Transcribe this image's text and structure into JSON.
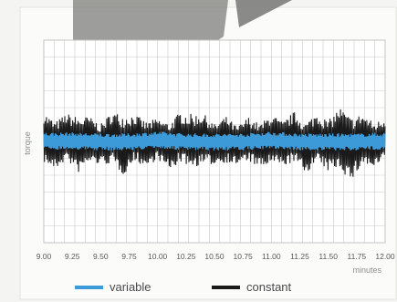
{
  "chart_data": {
    "type": "line",
    "title": "",
    "xlabel": "minutes",
    "ylabel": "torque",
    "xlim": [
      9.0,
      12.0
    ],
    "ylim": [
      -1.0,
      1.0
    ],
    "grid": true,
    "legend_placement": "bottom",
    "x_ticks": [
      "9.00",
      "9.25",
      "9.50",
      "9.75",
      "10.00",
      "10.25",
      "10.50",
      "10.75",
      "11.00",
      "11.25",
      "11.50",
      "11.75",
      "12.00"
    ],
    "series": [
      {
        "name": "constant",
        "color": "#1a1a1a",
        "x": [
          9.0,
          9.1,
          9.2,
          9.3,
          9.4,
          9.5,
          9.6,
          9.7,
          9.8,
          9.9,
          10.0,
          10.1,
          10.2,
          10.3,
          10.4,
          10.5,
          10.6,
          10.7,
          10.8,
          10.9,
          11.0,
          11.1,
          11.2,
          11.3,
          11.4,
          11.5,
          11.6,
          11.7,
          11.8,
          11.9,
          12.0
        ],
        "values": [
          0.22,
          -0.18,
          0.26,
          -0.24,
          0.18,
          -0.2,
          0.24,
          -0.22,
          0.2,
          -0.16,
          0.18,
          -0.24,
          0.22,
          -0.2,
          0.26,
          -0.18,
          0.2,
          -0.22,
          0.16,
          -0.2,
          0.22,
          -0.18,
          0.24,
          -0.26,
          0.2,
          -0.24,
          0.28,
          -0.32,
          0.24,
          -0.22,
          0.2
        ],
        "envelope_upper": [
          0.26,
          0.22,
          0.24,
          0.28,
          0.22,
          0.2,
          0.26,
          0.3,
          0.24,
          0.22,
          0.2,
          0.22,
          0.26,
          0.3,
          0.24,
          0.2,
          0.22,
          0.18,
          0.22,
          0.2,
          0.24,
          0.22,
          0.26,
          0.22,
          0.26,
          0.24,
          0.3,
          0.28,
          0.24,
          0.22,
          0.2
        ],
        "envelope_lower": [
          -0.24,
          -0.26,
          -0.22,
          -0.28,
          -0.24,
          -0.2,
          -0.26,
          -0.3,
          -0.22,
          -0.24,
          -0.2,
          -0.26,
          -0.24,
          -0.22,
          -0.28,
          -0.2,
          -0.24,
          -0.2,
          -0.22,
          -0.24,
          -0.26,
          -0.22,
          -0.24,
          -0.28,
          -0.24,
          -0.26,
          -0.3,
          -0.36,
          -0.26,
          -0.24,
          -0.22
        ]
      },
      {
        "name": "variable",
        "color": "#3d9ad8",
        "x": [
          9.0,
          9.25,
          9.5,
          9.75,
          10.0,
          10.25,
          10.5,
          10.75,
          11.0,
          11.25,
          11.5,
          11.75,
          12.0
        ],
        "values": [
          0.0,
          0.01,
          -0.01,
          0.0,
          0.01,
          0.0,
          -0.01,
          0.0,
          0.01,
          0.0,
          -0.01,
          0.0,
          0.0
        ],
        "envelope_upper": [
          0.09,
          0.08,
          0.09,
          0.08,
          0.09,
          0.08,
          0.09,
          0.08,
          0.09,
          0.08,
          0.09,
          0.08,
          0.09
        ],
        "envelope_lower": [
          -0.08,
          -0.09,
          -0.08,
          -0.09,
          -0.08,
          -0.09,
          -0.08,
          -0.09,
          -0.08,
          -0.09,
          -0.08,
          -0.09,
          -0.08
        ]
      }
    ]
  }
}
